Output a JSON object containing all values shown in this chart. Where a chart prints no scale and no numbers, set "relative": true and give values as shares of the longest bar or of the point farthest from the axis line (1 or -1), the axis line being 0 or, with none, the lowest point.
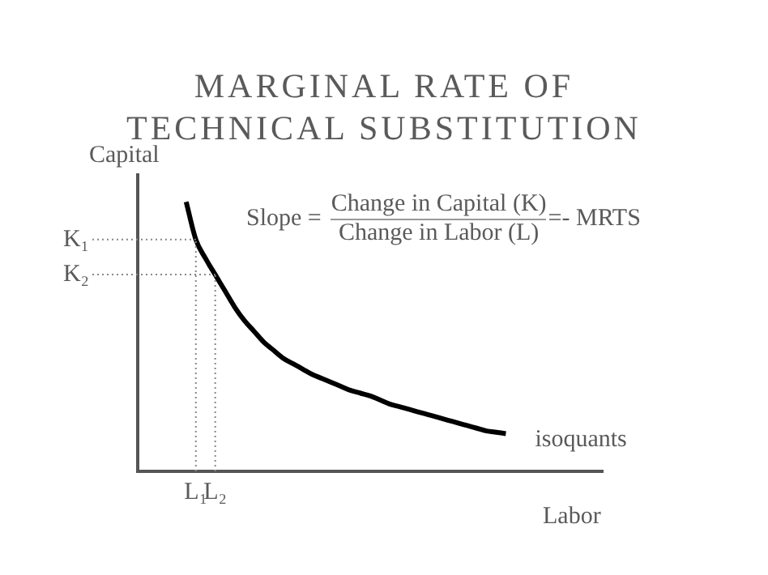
{
  "chart_data": {
    "type": "line",
    "title": "MARGINAL RATE OF\nTECHNICAL SUBSTITUTION",
    "xlabel": "Labor",
    "ylabel": "Capital",
    "relative": true,
    "categories": [
      null,
      null,
      null,
      null,
      null,
      null,
      "L₁",
      null,
      "L₂",
      null,
      null,
      null,
      null,
      null,
      null,
      null,
      null,
      null,
      null,
      null,
      null,
      null,
      null,
      null,
      null,
      null,
      null,
      null,
      null,
      null,
      null,
      null,
      null,
      null,
      null,
      null,
      null,
      null,
      null,
      null,
      null,
      null,
      null,
      null,
      null,
      null,
      null,
      null,
      null
    ],
    "series": [
      {
        "name": "isoquants",
        "color": "#000000",
        "values": [
          null,
          null,
          null,
          null,
          null,
          1.0,
          0.86,
          0.79,
          0.73,
          0.67,
          0.61,
          0.56,
          0.52,
          0.48,
          0.45,
          0.42,
          0.4,
          0.38,
          0.36,
          0.345,
          0.33,
          0.315,
          0.3,
          0.29,
          0.28,
          0.265,
          0.25,
          0.24,
          0.23,
          0.22,
          0.21,
          0.2,
          0.19,
          0.18,
          0.17,
          0.16,
          0.15,
          0.145,
          0.14,
          null,
          null,
          null,
          null,
          null,
          null,
          null,
          null,
          null,
          null
        ]
      }
    ],
    "ref_lines": [
      {
        "axis": "y",
        "value": 0.86,
        "label": "K₁",
        "line_style": "dotted"
      },
      {
        "axis": "y",
        "value": 0.73,
        "label": "K₂",
        "line_style": "dotted"
      },
      {
        "axis": "x",
        "value": "L₁",
        "line_style": "dotted"
      },
      {
        "axis": "x",
        "value": "L₂",
        "line_style": "dotted"
      }
    ],
    "annotations": [
      "Slope =",
      "Change in Capital (K)",
      "Change in Labor (L)",
      "=- MRTS"
    ]
  }
}
